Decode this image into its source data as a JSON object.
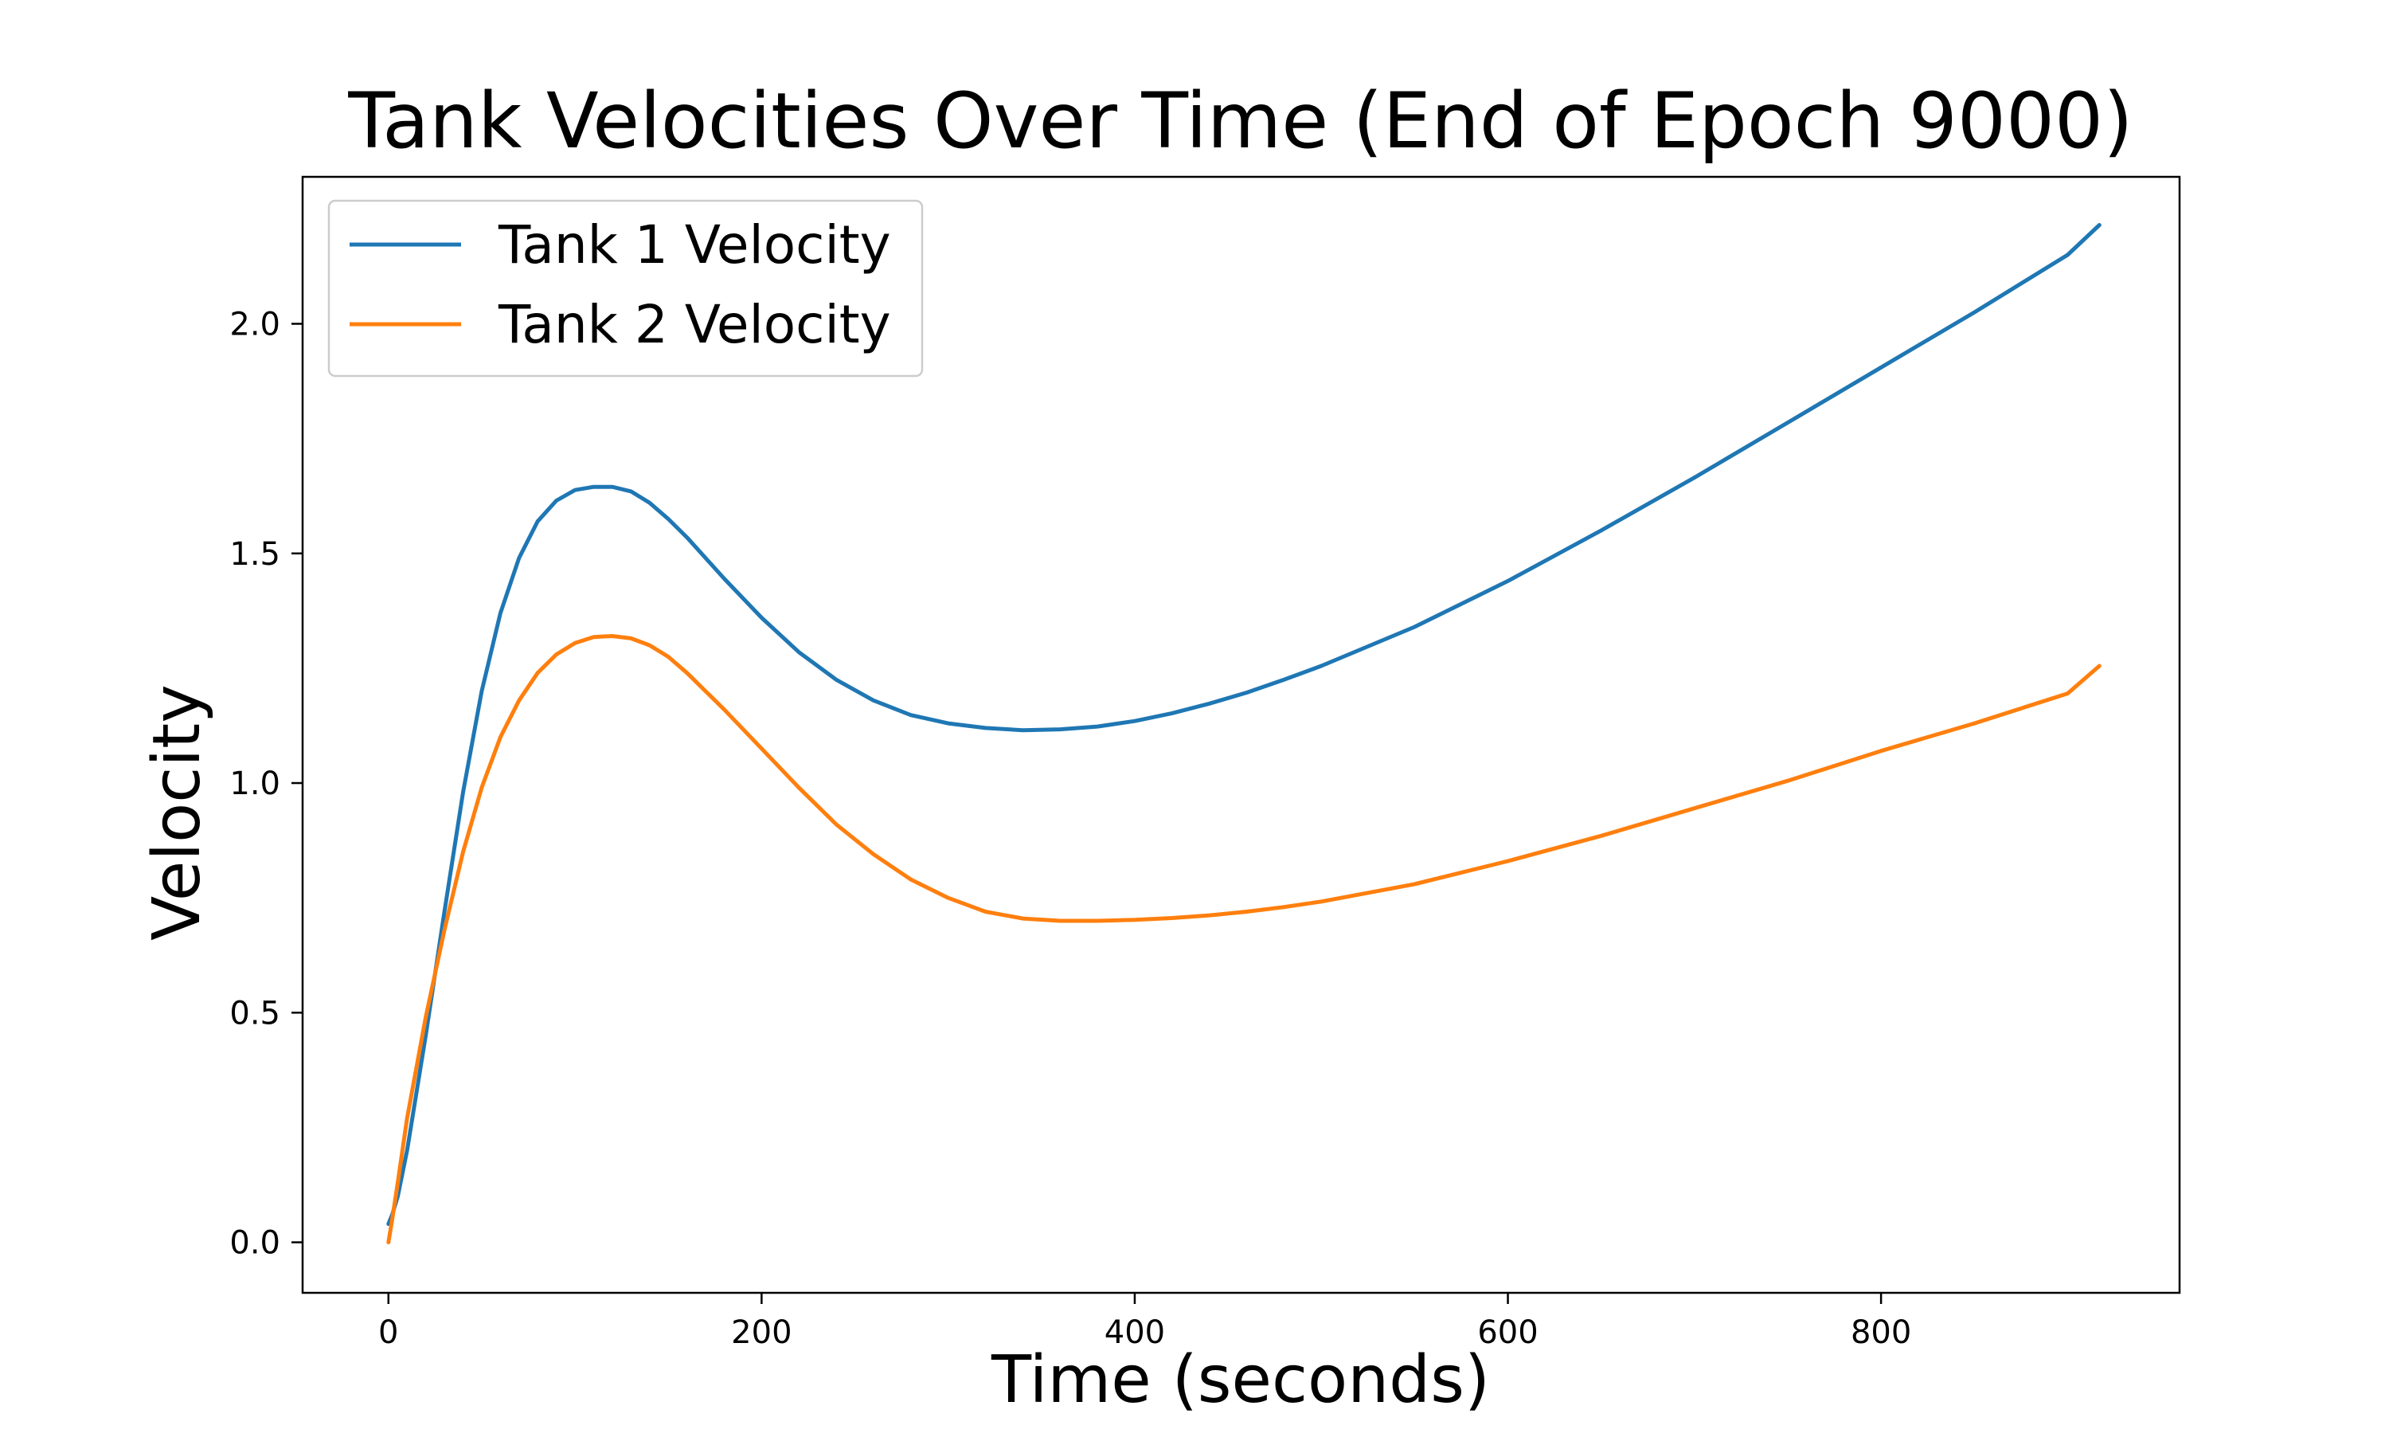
{
  "chart_data": {
    "type": "line",
    "title": "Tank Velocities Over Time (End of Epoch 9000)",
    "xlabel": "Time (seconds)",
    "ylabel": "Velocity",
    "xlim": [
      -46,
      960
    ],
    "ylim": [
      -0.11,
      2.32
    ],
    "xticks": [
      0,
      200,
      400,
      600,
      800
    ],
    "xtick_labels": [
      "0",
      "200",
      "400",
      "600",
      "800"
    ],
    "yticks": [
      0.0,
      0.5,
      1.0,
      1.5,
      2.0
    ],
    "ytick_labels": [
      "0.0",
      "0.5",
      "1.0",
      "1.5",
      "2.0"
    ],
    "grid": false,
    "legend_position": "upper-left",
    "series": [
      {
        "name": "Tank 1 Velocity",
        "color": "#1f77b4",
        "x": [
          0,
          2,
          5,
          10,
          20,
          30,
          40,
          50,
          60,
          70,
          80,
          90,
          100,
          110,
          120,
          130,
          140,
          150,
          160,
          180,
          200,
          220,
          240,
          260,
          280,
          300,
          320,
          340,
          360,
          380,
          400,
          420,
          440,
          460,
          480,
          500,
          550,
          600,
          650,
          700,
          750,
          800,
          850,
          900,
          917
        ],
        "y": [
          0.04,
          0.06,
          0.1,
          0.2,
          0.45,
          0.72,
          0.98,
          1.2,
          1.37,
          1.49,
          1.57,
          1.615,
          1.638,
          1.645,
          1.645,
          1.635,
          1.61,
          1.575,
          1.535,
          1.445,
          1.36,
          1.285,
          1.225,
          1.18,
          1.148,
          1.13,
          1.12,
          1.115,
          1.117,
          1.123,
          1.135,
          1.152,
          1.173,
          1.197,
          1.225,
          1.255,
          1.34,
          1.44,
          1.55,
          1.665,
          1.785,
          1.905,
          2.025,
          2.15,
          2.215
        ]
      },
      {
        "name": "Tank 2 Velocity",
        "color": "#ff7f0e",
        "x": [
          0,
          2,
          5,
          10,
          20,
          30,
          40,
          50,
          60,
          70,
          80,
          90,
          100,
          110,
          120,
          130,
          140,
          150,
          160,
          180,
          200,
          220,
          240,
          260,
          280,
          300,
          320,
          340,
          360,
          380,
          400,
          420,
          440,
          460,
          480,
          500,
          550,
          600,
          650,
          700,
          750,
          800,
          850,
          900,
          917
        ],
        "y": [
          0.0,
          0.05,
          0.13,
          0.27,
          0.49,
          0.68,
          0.85,
          0.99,
          1.1,
          1.18,
          1.24,
          1.28,
          1.305,
          1.318,
          1.32,
          1.315,
          1.3,
          1.275,
          1.24,
          1.16,
          1.075,
          0.99,
          0.91,
          0.845,
          0.79,
          0.75,
          0.72,
          0.705,
          0.7,
          0.7,
          0.702,
          0.706,
          0.712,
          0.72,
          0.73,
          0.742,
          0.78,
          0.83,
          0.885,
          0.945,
          1.005,
          1.07,
          1.13,
          1.195,
          1.255
        ]
      }
    ]
  }
}
